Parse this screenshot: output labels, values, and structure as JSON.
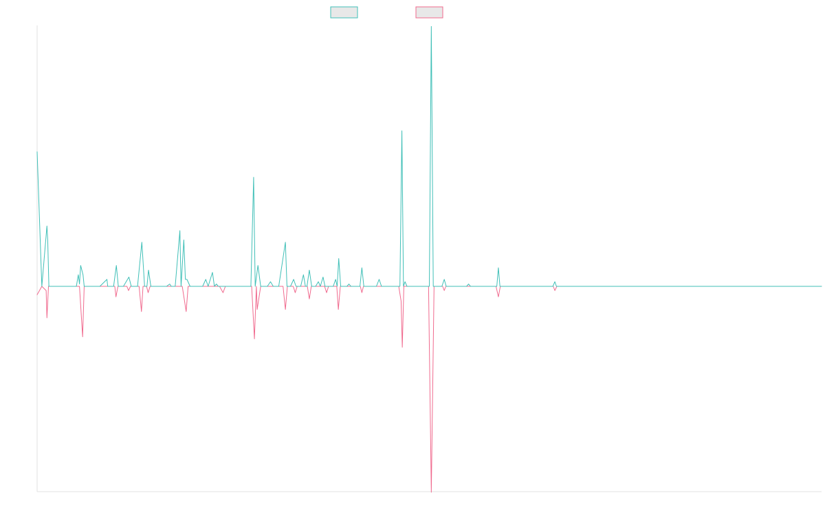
{
  "chart_data": {
    "type": "line",
    "title": "",
    "xlabel": "",
    "ylabel": "",
    "grid": false,
    "legend": "top-center",
    "ylim": [
      -1,
      1
    ],
    "colors": {
      "series_a": "#3fbfb7",
      "series_b": "#f06a8e",
      "axis": "#e2e2e2",
      "legend_fill": "#e8e8e8"
    },
    "series": [
      {
        "name": "",
        "color": "#3fbfb7",
        "points": [
          [
            0,
            0.58
          ],
          [
            1.2,
            0.0
          ],
          [
            2.5,
            0.26
          ],
          [
            2.7,
            0.2
          ],
          [
            3.0,
            0.0
          ],
          [
            5.0,
            0.0
          ],
          [
            10.0,
            0.0
          ],
          [
            10.5,
            0.05
          ],
          [
            10.8,
            0.01
          ],
          [
            11.1,
            0.09
          ],
          [
            11.7,
            0.05
          ],
          [
            12.0,
            0.0
          ],
          [
            16.0,
            0.0
          ],
          [
            17.8,
            0.03
          ],
          [
            18.0,
            0.0
          ],
          [
            19.5,
            0.0
          ],
          [
            20.2,
            0.09
          ],
          [
            20.7,
            0.0
          ],
          [
            22.0,
            0.0
          ],
          [
            23.4,
            0.04
          ],
          [
            24.0,
            0.0
          ],
          [
            25.6,
            0.0
          ],
          [
            26.7,
            0.19
          ],
          [
            27.4,
            0.0
          ],
          [
            28.0,
            0.0
          ],
          [
            28.4,
            0.07
          ],
          [
            29.0,
            0.0
          ],
          [
            33.0,
            0.0
          ],
          [
            33.8,
            0.01
          ],
          [
            34.2,
            0.0
          ],
          [
            35.2,
            0.0
          ],
          [
            36.4,
            0.24
          ],
          [
            36.7,
            0.0
          ],
          [
            37.4,
            0.2
          ],
          [
            37.8,
            0.03
          ],
          [
            38.2,
            0.03
          ],
          [
            39.0,
            0.0
          ],
          [
            42.2,
            0.0
          ],
          [
            43.0,
            0.03
          ],
          [
            43.6,
            0.0
          ],
          [
            44.7,
            0.06
          ],
          [
            45.2,
            0.0
          ],
          [
            45.7,
            0.01
          ],
          [
            46.2,
            0.0
          ],
          [
            54.5,
            0.0
          ],
          [
            55.2,
            0.47
          ],
          [
            55.6,
            0.0
          ],
          [
            56.3,
            0.09
          ],
          [
            57.0,
            0.0
          ],
          [
            58.7,
            0.0
          ],
          [
            59.5,
            0.02
          ],
          [
            60.2,
            0.0
          ],
          [
            61.6,
            0.0
          ],
          [
            63.3,
            0.19
          ],
          [
            63.7,
            0.0
          ],
          [
            64.6,
            0.0
          ],
          [
            65.4,
            0.03
          ],
          [
            66.0,
            0.0
          ],
          [
            67.2,
            0.0
          ],
          [
            67.9,
            0.05
          ],
          [
            68.4,
            0.0
          ],
          [
            68.8,
            0.0
          ],
          [
            69.4,
            0.07
          ],
          [
            70.0,
            0.0
          ],
          [
            71.0,
            0.0
          ],
          [
            71.7,
            0.02
          ],
          [
            72.2,
            0.0
          ],
          [
            72.9,
            0.04
          ],
          [
            73.4,
            0.0
          ],
          [
            75.5,
            0.0
          ],
          [
            76.1,
            0.03
          ],
          [
            76.5,
            0.0
          ],
          [
            76.9,
            0.12
          ],
          [
            77.4,
            0.0
          ],
          [
            79.0,
            0.0
          ],
          [
            79.5,
            0.01
          ],
          [
            80.0,
            0.0
          ],
          [
            82.3,
            0.0
          ],
          [
            82.8,
            0.08
          ],
          [
            83.3,
            0.0
          ],
          [
            86.5,
            0.0
          ],
          [
            87.2,
            0.03
          ],
          [
            87.8,
            0.0
          ],
          [
            92.5,
            0.0
          ],
          [
            93.0,
            0.67
          ],
          [
            93.4,
            0.0
          ],
          [
            93.8,
            0.02
          ],
          [
            94.3,
            0.0
          ],
          [
            100.0,
            0.0
          ],
          [
            100.5,
            1.12
          ],
          [
            101.0,
            0.0
          ],
          [
            103.2,
            0.0
          ],
          [
            103.8,
            0.03
          ],
          [
            104.3,
            0.0
          ],
          [
            109.5,
            0.0
          ],
          [
            110.0,
            0.01
          ],
          [
            110.5,
            0.0
          ],
          [
            117.2,
            0.0
          ],
          [
            117.6,
            0.08
          ],
          [
            118.0,
            0.0
          ],
          [
            131.5,
            0.0
          ],
          [
            132.0,
            0.02
          ],
          [
            132.4,
            0.0
          ],
          [
            200,
            0.0
          ]
        ]
      },
      {
        "name": "",
        "color": "#f06a8e",
        "points": [
          [
            0,
            -0.04
          ],
          [
            1.2,
            0.0
          ],
          [
            2.3,
            -0.02
          ],
          [
            2.5,
            -0.15
          ],
          [
            2.9,
            0.0
          ],
          [
            10.8,
            0.0
          ],
          [
            11.6,
            -0.24
          ],
          [
            12.0,
            0.0
          ],
          [
            19.8,
            0.0
          ],
          [
            20.1,
            -0.05
          ],
          [
            20.6,
            0.0
          ],
          [
            22.9,
            0.0
          ],
          [
            23.3,
            -0.02
          ],
          [
            23.8,
            0.0
          ],
          [
            26.0,
            0.0
          ],
          [
            26.6,
            -0.12
          ],
          [
            27.0,
            0.0
          ],
          [
            27.9,
            0.0
          ],
          [
            28.3,
            -0.03
          ],
          [
            28.8,
            0.0
          ],
          [
            37.0,
            0.0
          ],
          [
            38.0,
            -0.12
          ],
          [
            38.5,
            0.0
          ],
          [
            46.5,
            0.0
          ],
          [
            47.4,
            -0.03
          ],
          [
            48.0,
            0.0
          ],
          [
            54.7,
            0.0
          ],
          [
            55.4,
            -0.25
          ],
          [
            55.9,
            0.0
          ],
          [
            56.1,
            -0.11
          ],
          [
            57.0,
            0.0
          ],
          [
            62.7,
            0.0
          ],
          [
            63.3,
            -0.11
          ],
          [
            63.8,
            0.0
          ],
          [
            65.3,
            0.0
          ],
          [
            65.8,
            -0.03
          ],
          [
            66.3,
            0.0
          ],
          [
            68.9,
            0.0
          ],
          [
            69.4,
            -0.06
          ],
          [
            69.9,
            0.0
          ],
          [
            73.3,
            0.0
          ],
          [
            73.8,
            -0.03
          ],
          [
            74.3,
            0.0
          ],
          [
            76.4,
            0.0
          ],
          [
            76.8,
            -0.11
          ],
          [
            77.3,
            0.0
          ],
          [
            82.4,
            0.0
          ],
          [
            82.8,
            -0.03
          ],
          [
            83.2,
            0.0
          ],
          [
            92.2,
            0.0
          ],
          [
            92.8,
            -0.07
          ],
          [
            93.1,
            -0.29
          ],
          [
            93.5,
            0.0
          ],
          [
            99.8,
            0.0
          ],
          [
            100.5,
            -0.98
          ],
          [
            101.2,
            0.0
          ],
          [
            103.4,
            0.0
          ],
          [
            103.8,
            -0.02
          ],
          [
            104.2,
            0.0
          ],
          [
            117.0,
            0.0
          ],
          [
            117.6,
            -0.05
          ],
          [
            118.1,
            0.0
          ],
          [
            131.6,
            0.0
          ],
          [
            132.0,
            -0.02
          ],
          [
            132.5,
            0.0
          ],
          [
            200,
            0.0
          ]
        ]
      }
    ]
  }
}
